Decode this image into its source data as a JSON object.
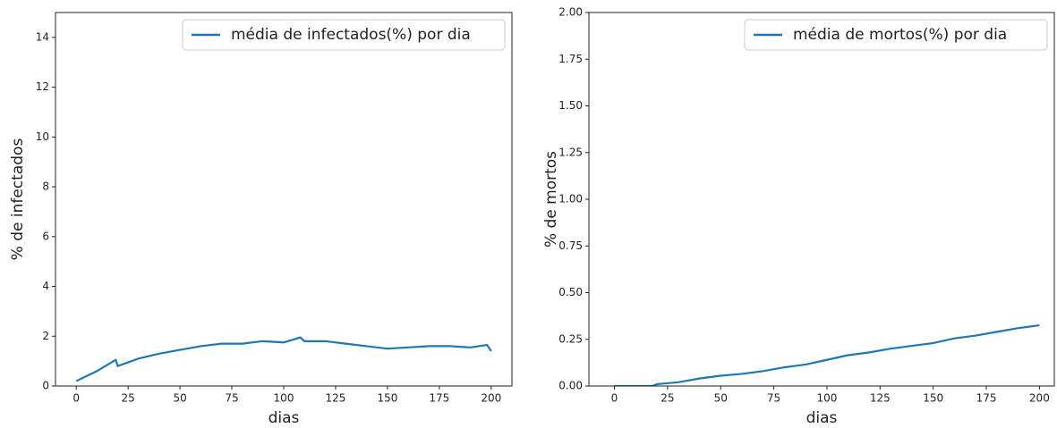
{
  "chart_data": [
    {
      "type": "line",
      "ylabel": "% de infectados",
      "xlabel": "dias",
      "xlim": [
        -10,
        210
      ],
      "ylim": [
        0,
        15
      ],
      "xticks": [
        0,
        25,
        50,
        75,
        100,
        125,
        150,
        175,
        200
      ],
      "yticks": [
        0,
        2,
        4,
        6,
        8,
        10,
        12,
        14
      ],
      "legend": "upper right",
      "x": [
        0,
        10,
        19,
        20,
        30,
        40,
        50,
        60,
        70,
        80,
        90,
        100,
        108,
        110,
        120,
        130,
        140,
        150,
        160,
        170,
        180,
        190,
        198,
        200
      ],
      "series": [
        {
          "name": "média de infectados(%) por dia",
          "color": "#1f77b4",
          "values": [
            0.2,
            0.6,
            1.05,
            0.8,
            1.1,
            1.3,
            1.45,
            1.6,
            1.7,
            1.7,
            1.8,
            1.75,
            1.95,
            1.8,
            1.8,
            1.7,
            1.6,
            1.5,
            1.55,
            1.6,
            1.6,
            1.55,
            1.65,
            1.4
          ]
        }
      ]
    },
    {
      "type": "line",
      "ylabel": "% de mortos",
      "xlabel": "dias",
      "xlim": [
        -12,
        207
      ],
      "ylim": [
        0,
        2.0
      ],
      "xticks": [
        0,
        25,
        50,
        75,
        100,
        125,
        150,
        175,
        200
      ],
      "yticks": [
        {
          "value": 0,
          "label": "0.00"
        },
        {
          "value": 0.25,
          "label": "0.25"
        },
        {
          "value": 0.5,
          "label": "0.50"
        },
        {
          "value": 0.75,
          "label": "0.75"
        },
        {
          "value": 1,
          "label": "1.00"
        },
        {
          "value": 1.25,
          "label": "1.25"
        },
        {
          "value": 1.5,
          "label": "1.50"
        },
        {
          "value": 1.75,
          "label": "1.75"
        },
        {
          "value": 2,
          "label": "2.00"
        }
      ],
      "legend": "upper right",
      "x": [
        0,
        18,
        20,
        30,
        40,
        50,
        60,
        70,
        80,
        90,
        100,
        110,
        120,
        130,
        140,
        150,
        160,
        170,
        180,
        190,
        200
      ],
      "series": [
        {
          "name": "média de mortos(%) por dia",
          "color": "#1f77b4",
          "values": [
            0,
            0,
            0.01,
            0.02,
            0.04,
            0.055,
            0.065,
            0.08,
            0.1,
            0.115,
            0.14,
            0.165,
            0.18,
            0.2,
            0.215,
            0.23,
            0.255,
            0.27,
            0.29,
            0.31,
            0.325
          ]
        }
      ]
    }
  ]
}
